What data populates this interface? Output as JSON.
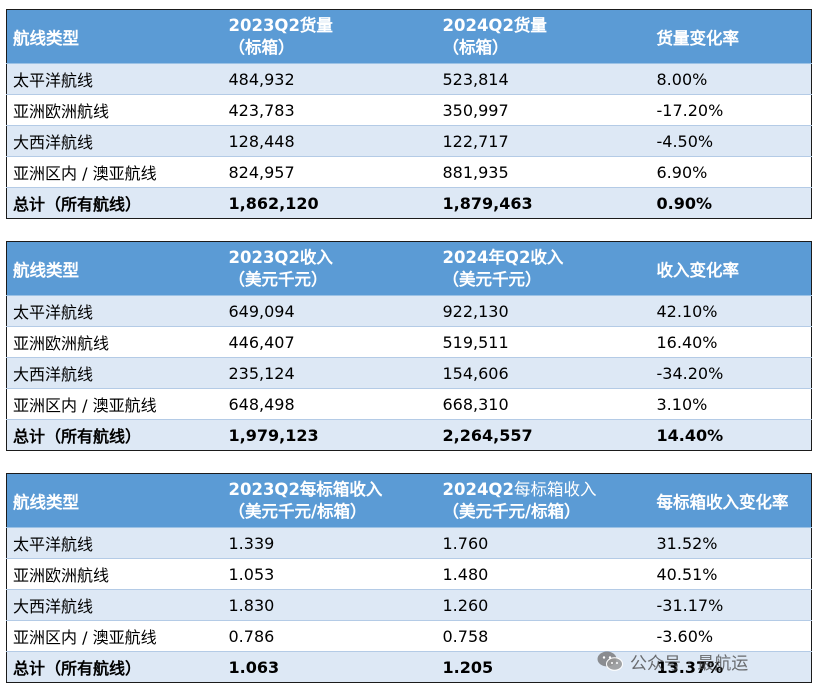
{
  "tables": [
    {
      "header": {
        "route_type": "航线类型",
        "col2_line1": "2023Q2货量",
        "col2_line2": "（标箱）",
        "col3_line1": "2024Q2货量",
        "col3_line2": "（标箱）",
        "col4": "货量变化率"
      },
      "rows": [
        {
          "route": "太平洋航线",
          "v2023": "484,932",
          "v2024": "523,814",
          "change": "8.00%"
        },
        {
          "route": "亚洲欧洲航线",
          "v2023": "423,783",
          "v2024": "350,997",
          "change": "-17.20%"
        },
        {
          "route": "大西洋航线",
          "v2023": "128,448",
          "v2024": "122,717",
          "change": "-4.50%"
        },
        {
          "route": "亚洲区内 / 澳亚航线",
          "v2023": "824,957",
          "v2024": "881,935",
          "change": "6.90%"
        }
      ],
      "total": {
        "route": "总计（所有航线）",
        "v2023": "1,862,120",
        "v2024": "1,879,463",
        "change": "0.90%"
      }
    },
    {
      "header": {
        "route_type": "航线类型",
        "col2_line1": "2023Q2收入",
        "col2_line2": "（美元千元）",
        "col3_line1": "2024年Q2收入",
        "col3_line2": "（美元千元）",
        "col4": "收入变化率"
      },
      "rows": [
        {
          "route": "太平洋航线",
          "v2023": "649,094",
          "v2024": "922,130",
          "change": "42.10%"
        },
        {
          "route": "亚洲欧洲航线",
          "v2023": "446,407",
          "v2024": "519,511",
          "change": "16.40%"
        },
        {
          "route": "大西洋航线",
          "v2023": "235,124",
          "v2024": "154,606",
          "change": "-34.20%"
        },
        {
          "route": "亚洲区内 / 澳亚航线",
          "v2023": "648,498",
          "v2024": "668,310",
          "change": "3.10%"
        }
      ],
      "total": {
        "route": "总计（所有航线）",
        "v2023": "1,979,123",
        "v2024": "2,264,557",
        "change": "14.40%"
      }
    },
    {
      "header": {
        "route_type": "航线类型",
        "col2_line1": "2023Q2每标箱收入",
        "col2_line2": "（美元千元/标箱）",
        "col3_line1_bold": "2024Q2",
        "col3_line1_plain": "每标箱收入",
        "col3_line2": "（美元千元/标箱）",
        "col4": "每标箱收入变化率"
      },
      "rows": [
        {
          "route": "太平洋航线",
          "v2023": "1.339",
          "v2024": "1.760",
          "change": "31.52%"
        },
        {
          "route": "亚洲欧洲航线",
          "v2023": "1.053",
          "v2024": "1.480",
          "change": "40.51%"
        },
        {
          "route": "大西洋航线",
          "v2023": "1.830",
          "v2024": "1.260",
          "change": "-31.17%"
        },
        {
          "route": "亚洲区内 / 澳亚航线",
          "v2023": "0.786",
          "v2024": "0.758",
          "change": "-3.60%"
        }
      ],
      "total": {
        "route": "总计（所有航线）",
        "v2023": "1.063",
        "v2024": "1.205",
        "change": "13.37%"
      }
    }
  ],
  "watermark": {
    "text": "公众号 · 最航运",
    "icon": "wechat-icon"
  },
  "colors": {
    "header": "#5b9bd5",
    "band": "#dde8f5"
  }
}
